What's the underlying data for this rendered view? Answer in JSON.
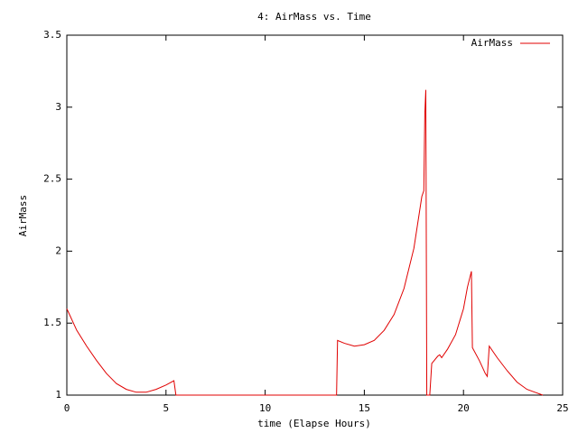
{
  "chart_data": {
    "type": "line",
    "title": "4: AirMass vs. Time",
    "xlabel": "time (Elapse Hours)",
    "ylabel": "AirMass",
    "x": [
      0,
      0.5,
      1,
      1.5,
      2,
      2.5,
      3,
      3.5,
      4,
      4.5,
      5,
      5.4,
      5.5,
      13.6,
      13.65,
      14,
      14.5,
      15,
      15.5,
      16,
      16.5,
      17,
      17.5,
      17.9,
      18,
      18.05,
      18.1,
      18.15,
      18.3,
      18.4,
      18.7,
      18.8,
      18.9,
      19.2,
      19.6,
      20,
      20.2,
      20.4,
      20.45,
      20.8,
      21.1,
      21.2,
      21.3,
      21.7,
      22.2,
      22.7,
      23.2,
      23.6,
      24
    ],
    "series": [
      {
        "name": "AirMass",
        "color": "#e00000",
        "values": [
          1.6,
          1.45,
          1.34,
          1.24,
          1.15,
          1.08,
          1.04,
          1.02,
          1.02,
          1.04,
          1.07,
          1.1,
          1.0,
          1.0,
          1.38,
          1.36,
          1.34,
          1.35,
          1.38,
          1.45,
          1.56,
          1.74,
          2.02,
          2.38,
          2.42,
          2.95,
          3.12,
          1.0,
          1.0,
          1.22,
          1.27,
          1.28,
          1.26,
          1.32,
          1.42,
          1.6,
          1.75,
          1.86,
          1.33,
          1.24,
          1.15,
          1.13,
          1.34,
          1.26,
          1.17,
          1.09,
          1.04,
          1.02,
          1.0
        ]
      }
    ],
    "xlim": [
      0,
      25
    ],
    "xticks": [
      0,
      5,
      10,
      15,
      20,
      25
    ],
    "ylim": [
      1,
      3.5
    ],
    "yticks": [
      1,
      1.5,
      2,
      2.5,
      3,
      3.5
    ],
    "grid": false,
    "legend": "upper right"
  }
}
